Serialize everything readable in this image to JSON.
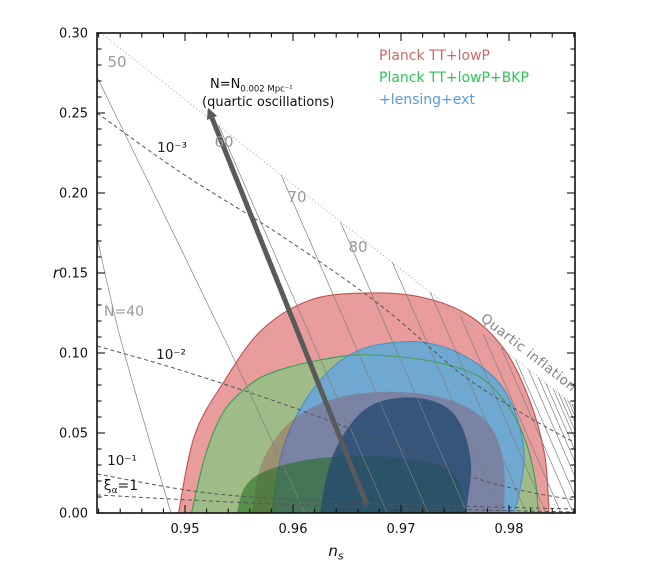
{
  "chart_data": {
    "type": "contour",
    "xlabel_main": "n",
    "xlabel_sub": "s",
    "ylabel": "r",
    "x_range": [
      0.94185,
      0.98611
    ],
    "y_range": [
      0.0,
      0.3
    ],
    "x_ticks": [
      0.95,
      0.96,
      0.97,
      0.98
    ],
    "x_tick_labels": [
      "0.95",
      "0.96",
      "0.97",
      "0.98"
    ],
    "x_minor_step": 0.002,
    "y_ticks": [
      0.0,
      0.05,
      0.1,
      0.15,
      0.2,
      0.25,
      0.3
    ],
    "y_tick_labels": [
      "0.00",
      "0.05",
      "0.10",
      "0.15",
      "0.20",
      "0.25",
      "0.30"
    ],
    "y_minor_step": 0.01,
    "grid": false,
    "legend_position": "upper right",
    "legend": [
      {
        "label": "Planck TT+lowP",
        "color": "#c96a6a"
      },
      {
        "label": "Planck TT+lowP+BKP",
        "color": "#2fc455"
      },
      {
        "label": "+lensing+ext",
        "color": "#5b9bd5"
      }
    ],
    "series": [
      {
        "name": "Planck TT+lowP 95% CL",
        "level": "95",
        "fill": "#e89c9c",
        "fill_opacity": 1.0,
        "stroke": "#c0504d",
        "points": [
          [
            0.9494,
            0.0
          ],
          [
            0.9509,
            0.0488
          ],
          [
            0.9537,
            0.0831
          ],
          [
            0.9571,
            0.1144
          ],
          [
            0.9616,
            0.1331
          ],
          [
            0.9667,
            0.1375
          ],
          [
            0.9718,
            0.135
          ],
          [
            0.9762,
            0.1238
          ],
          [
            0.9796,
            0.1019
          ],
          [
            0.9819,
            0.0706
          ],
          [
            0.9833,
            0.0363
          ],
          [
            0.9837,
            0.0
          ]
        ]
      },
      {
        "name": "Planck TT+lowP+BKP 95% CL",
        "level": "95",
        "fill": "#9fbc88",
        "fill_opacity": 1.0,
        "stroke": "#3fa35a",
        "points": [
          [
            0.9506,
            0.0
          ],
          [
            0.9519,
            0.0363
          ],
          [
            0.9534,
            0.0613
          ],
          [
            0.9551,
            0.075
          ],
          [
            0.9571,
            0.085
          ],
          [
            0.9597,
            0.0913
          ],
          [
            0.9625,
            0.0956
          ],
          [
            0.9657,
            0.0988
          ],
          [
            0.969,
            0.0981
          ],
          [
            0.9722,
            0.0956
          ],
          [
            0.975,
            0.0913
          ],
          [
            0.9773,
            0.085
          ],
          [
            0.9789,
            0.0756
          ],
          [
            0.9806,
            0.0594
          ],
          [
            0.9818,
            0.0394
          ],
          [
            0.9825,
            0.0175
          ],
          [
            0.9827,
            0.0
          ]
        ]
      },
      {
        "name": "+lensing+ext 95% CL",
        "level": "95",
        "fill": "#6fa8d0",
        "fill_opacity": 1.0,
        "stroke": "#4a90c8",
        "points": [
          [
            0.9581,
            0.0
          ],
          [
            0.9588,
            0.0331
          ],
          [
            0.9599,
            0.055
          ],
          [
            0.9616,
            0.075
          ],
          [
            0.9639,
            0.0925
          ],
          [
            0.9664,
            0.1025
          ],
          [
            0.969,
            0.1063
          ],
          [
            0.9718,
            0.1069
          ],
          [
            0.9745,
            0.1025
          ],
          [
            0.9771,
            0.0931
          ],
          [
            0.979,
            0.0819
          ],
          [
            0.9803,
            0.0675
          ],
          [
            0.9811,
            0.0506
          ],
          [
            0.9814,
            0.0331
          ],
          [
            0.981,
            0.0144
          ],
          [
            0.9805,
            0.0
          ]
        ]
      },
      {
        "name": "Planck TT+lowP 68% CL",
        "level": "68",
        "fill": "rgba(150,45,60,0.30)",
        "fill_opacity": 1.0,
        "stroke": "none",
        "points": [
          [
            0.9562,
            0.0
          ],
          [
            0.9569,
            0.0269
          ],
          [
            0.9584,
            0.0469
          ],
          [
            0.9606,
            0.0613
          ],
          [
            0.9634,
            0.0706
          ],
          [
            0.9667,
            0.075
          ],
          [
            0.9699,
            0.0756
          ],
          [
            0.9731,
            0.0731
          ],
          [
            0.9759,
            0.0669
          ],
          [
            0.9781,
            0.0556
          ],
          [
            0.9792,
            0.0406
          ],
          [
            0.9796,
            0.0219
          ],
          [
            0.9795,
            0.0
          ]
        ]
      },
      {
        "name": "Planck TT+lowP+BKP 68% CL",
        "level": "68",
        "fill": "rgba(25,105,25,0.55)",
        "fill_opacity": 1.0,
        "stroke": "none",
        "points": [
          [
            0.9548,
            0.0
          ],
          [
            0.9553,
            0.0131
          ],
          [
            0.9562,
            0.0213
          ],
          [
            0.9577,
            0.0269
          ],
          [
            0.9599,
            0.0313
          ],
          [
            0.9625,
            0.0344
          ],
          [
            0.9657,
            0.0356
          ],
          [
            0.969,
            0.035
          ],
          [
            0.9718,
            0.0325
          ],
          [
            0.9741,
            0.0281
          ],
          [
            0.9753,
            0.0206
          ],
          [
            0.9757,
            0.0113
          ],
          [
            0.9758,
            0.0
          ]
        ]
      },
      {
        "name": "+lensing+ext 68% CL",
        "level": "68",
        "fill": "rgba(35,72,110,0.78)",
        "fill_opacity": 1.0,
        "stroke": "none",
        "points": [
          [
            0.9625,
            0.0
          ],
          [
            0.9631,
            0.0225
          ],
          [
            0.964,
            0.0406
          ],
          [
            0.9655,
            0.0569
          ],
          [
            0.9673,
            0.0675
          ],
          [
            0.9697,
            0.0719
          ],
          [
            0.9722,
            0.0713
          ],
          [
            0.9743,
            0.0656
          ],
          [
            0.9755,
            0.0556
          ],
          [
            0.9762,
            0.0425
          ],
          [
            0.9765,
            0.0281
          ],
          [
            0.9763,
            0.0144
          ],
          [
            0.976,
            0.0
          ]
        ]
      }
    ],
    "attractor_line": {
      "label": "Quartic inflation",
      "style": "dotted",
      "points": [
        [
          0.9424,
          0.2988
        ],
        [
          0.9861,
          0.0669
        ]
      ]
    },
    "n_trajectories": {
      "labels": {
        "n40": "N=40",
        "n50": "50",
        "n60": "60",
        "n70": "70",
        "n80": "80"
      },
      "n40_points": [
        [
          0.9419,
          0.1706
        ],
        [
          0.9443,
          0.1019
        ],
        [
          0.9487,
          0.0
        ]
      ],
      "n50_points": [
        [
          0.9419,
          0.2719
        ],
        [
          0.9438,
          0.2456
        ],
        [
          0.9537,
          0.1081
        ],
        [
          0.9611,
          0.0
        ]
      ],
      "labeled_tips": {
        "n60": [
          0.9531,
          0.2425
        ],
        "n70": [
          0.9589,
          0.2113
        ],
        "n80": [
          0.9644,
          0.1819
        ]
      },
      "unlabeled_tips_ns": [
        0.9692,
        0.9727,
        0.9755,
        0.9776,
        0.9793,
        0.9806,
        0.9818,
        0.9827,
        0.9834,
        0.9841,
        0.9846,
        0.9851,
        0.9855,
        0.9858,
        0.986
      ]
    },
    "xi_lines": [
      {
        "label": "10⁻³",
        "points": [
          [
            0.94185,
            0.25
          ],
          [
            0.94954,
            0.2131
          ],
          [
            0.9588,
            0.1738
          ],
          [
            0.96806,
            0.13
          ],
          [
            0.97546,
            0.0875
          ],
          [
            0.98102,
            0.0631
          ],
          [
            0.98611,
            0.0438
          ]
        ]
      },
      {
        "label": "10⁻²",
        "points": [
          [
            0.94185,
            0.1044
          ],
          [
            0.94954,
            0.0894
          ],
          [
            0.9588,
            0.0688
          ],
          [
            0.96806,
            0.0456
          ],
          [
            0.97546,
            0.025
          ],
          [
            0.98102,
            0.0144
          ],
          [
            0.98611,
            0.0081
          ]
        ]
      },
      {
        "label": "10⁻¹",
        "points": [
          [
            0.94185,
            0.0244
          ],
          [
            0.95139,
            0.0131
          ],
          [
            0.96065,
            0.0081
          ],
          [
            0.97176,
            0.005
          ],
          [
            0.98611,
            0.0025
          ]
        ]
      },
      {
        "label_main": "ξ",
        "label_sub": "α",
        "label_tail": "=1",
        "points": [
          [
            0.94185,
            0.0113
          ],
          [
            0.95602,
            0.0063
          ],
          [
            0.96991,
            0.0031
          ],
          [
            0.98611,
            0.0006
          ]
        ]
      }
    ],
    "arrow": {
      "label_line1_main": "N=N",
      "label_line1_sub": "0.002 Mpc⁻¹",
      "label_line2": "(quartic oscillations)",
      "tail": [
        0.96685,
        0.005
      ],
      "tip": [
        0.9525,
        0.2469
      ]
    }
  }
}
